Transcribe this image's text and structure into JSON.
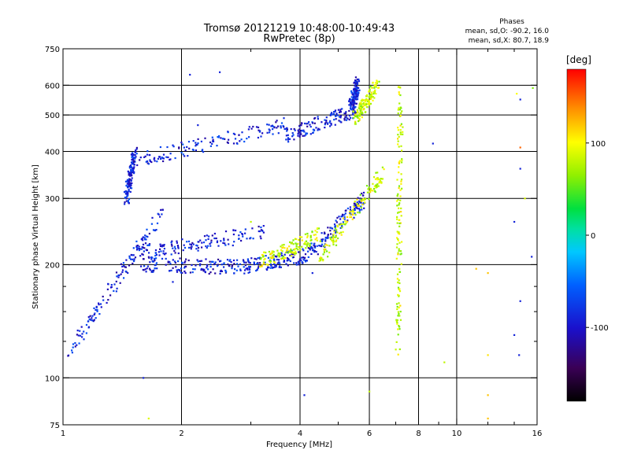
{
  "chart_data": {
    "type": "scatter",
    "title": "Tromsø 20121219 10:48:00-10:49:43",
    "subtitle": "RwPretec (8p)",
    "xlabel": "Frequency [MHz]",
    "ylabel": "Stationary phase Virtual Height [km]",
    "x_scale": "log",
    "y_scale": "log",
    "xlim": [
      1,
      16
    ],
    "ylim": [
      75,
      750
    ],
    "xticks": [
      1,
      2,
      4,
      6,
      8,
      10,
      16
    ],
    "xtick_labels": [
      "1",
      "2",
      "4",
      "6",
      "8",
      "10",
      "16"
    ],
    "x_minor_ticks": [
      3,
      5,
      7,
      9,
      12,
      14
    ],
    "yticks": [
      75,
      100,
      200,
      300,
      400,
      500,
      600,
      750
    ],
    "ytick_labels": [
      "75",
      "100",
      "200",
      "300",
      "400",
      "500",
      "600",
      "750"
    ],
    "y_minor_ticks": [
      125,
      150,
      175
    ],
    "x_gridlines": [
      2,
      4,
      6,
      8,
      10
    ],
    "y_gridlines": [
      100,
      200,
      300,
      400,
      500,
      600
    ],
    "stats": {
      "header": "Phases",
      "line1": "mean, sd,O: -90.2, 16.0",
      "line2": "mean, sd,X:  80.7, 18.9"
    },
    "colorbar": {
      "label": "[deg]",
      "min": -180,
      "max": 180,
      "ticks": [
        100,
        0,
        -100
      ],
      "tick_labels": [
        "100",
        "0",
        "-100"
      ]
    },
    "series": [
      {
        "name": "O",
        "color_value": -90,
        "segments": [
          {
            "x": [
              1.03,
              1.8
            ],
            "y": [
              115,
              280
            ]
          },
          {
            "x": [
              1.45,
              1.52
            ],
            "y": [
              300,
              395
            ]
          },
          {
            "x": [
              1.55,
              2.8
            ],
            "y": [
              200,
              197
            ]
          },
          {
            "x": [
              2.8,
              4.2
            ],
            "y": [
              197,
              212
            ]
          },
          {
            "x": [
              4.2,
              5.85
            ],
            "y": [
              212,
              300
            ]
          },
          {
            "x": [
              1.55,
              3.3
            ],
            "y": [
              215,
              245
            ]
          },
          {
            "x": [
              1.55,
              3.7
            ],
            "y": [
              380,
              470
            ]
          },
          {
            "x": [
              3.7,
              5.6
            ],
            "y": [
              440,
              520
            ]
          },
          {
            "x": [
              5.4,
              5.6
            ],
            "y": [
              520,
              610
            ]
          }
        ]
      },
      {
        "name": "X",
        "color_value": 85,
        "segments": [
          {
            "x": [
              3.2,
              4.5
            ],
            "y": [
              205,
              240
            ]
          },
          {
            "x": [
              4.5,
              6.5
            ],
            "y": [
              210,
              350
            ]
          },
          {
            "x": [
              5.5,
              6.3
            ],
            "y": [
              490,
              600
            ]
          },
          {
            "x": [
              7.1,
              7.2
            ],
            "y": [
              120,
              600
            ]
          }
        ]
      }
    ],
    "scatter_points": [
      {
        "x": 2.1,
        "y": 640,
        "v": -90
      },
      {
        "x": 2.5,
        "y": 650,
        "v": -90
      },
      {
        "x": 1.65,
        "y": 78,
        "v": 90
      },
      {
        "x": 4.1,
        "y": 90,
        "v": -90
      },
      {
        "x": 4.3,
        "y": 190,
        "v": -90
      },
      {
        "x": 6.0,
        "y": 92,
        "v": 80
      },
      {
        "x": 8.7,
        "y": 420,
        "v": -90
      },
      {
        "x": 9.3,
        "y": 110,
        "v": 80
      },
      {
        "x": 11.2,
        "y": 195,
        "v": 120
      },
      {
        "x": 12.0,
        "y": 190,
        "v": 120
      },
      {
        "x": 12.0,
        "y": 115,
        "v": 110
      },
      {
        "x": 12.0,
        "y": 90,
        "v": 120
      },
      {
        "x": 12.0,
        "y": 78,
        "v": 120
      },
      {
        "x": 14.5,
        "y": 410,
        "v": 150
      },
      {
        "x": 14.5,
        "y": 360,
        "v": -90
      },
      {
        "x": 14.0,
        "y": 260,
        "v": -90
      },
      {
        "x": 14.5,
        "y": 160,
        "v": -90
      },
      {
        "x": 14.0,
        "y": 130,
        "v": -90
      },
      {
        "x": 14.4,
        "y": 115,
        "v": -90
      },
      {
        "x": 15.5,
        "y": 210,
        "v": -90
      },
      {
        "x": 14.9,
        "y": 300,
        "v": 90
      },
      {
        "x": 14.2,
        "y": 570,
        "v": 100
      },
      {
        "x": 14.5,
        "y": 550,
        "v": -90
      },
      {
        "x": 15.6,
        "y": 590,
        "v": 60
      },
      {
        "x": 2.2,
        "y": 470,
        "v": -90
      },
      {
        "x": 1.9,
        "y": 180,
        "v": -90
      },
      {
        "x": 2.7,
        "y": 225,
        "v": -90
      },
      {
        "x": 3.0,
        "y": 260,
        "v": 80
      },
      {
        "x": 1.6,
        "y": 100,
        "v": -90
      }
    ]
  }
}
